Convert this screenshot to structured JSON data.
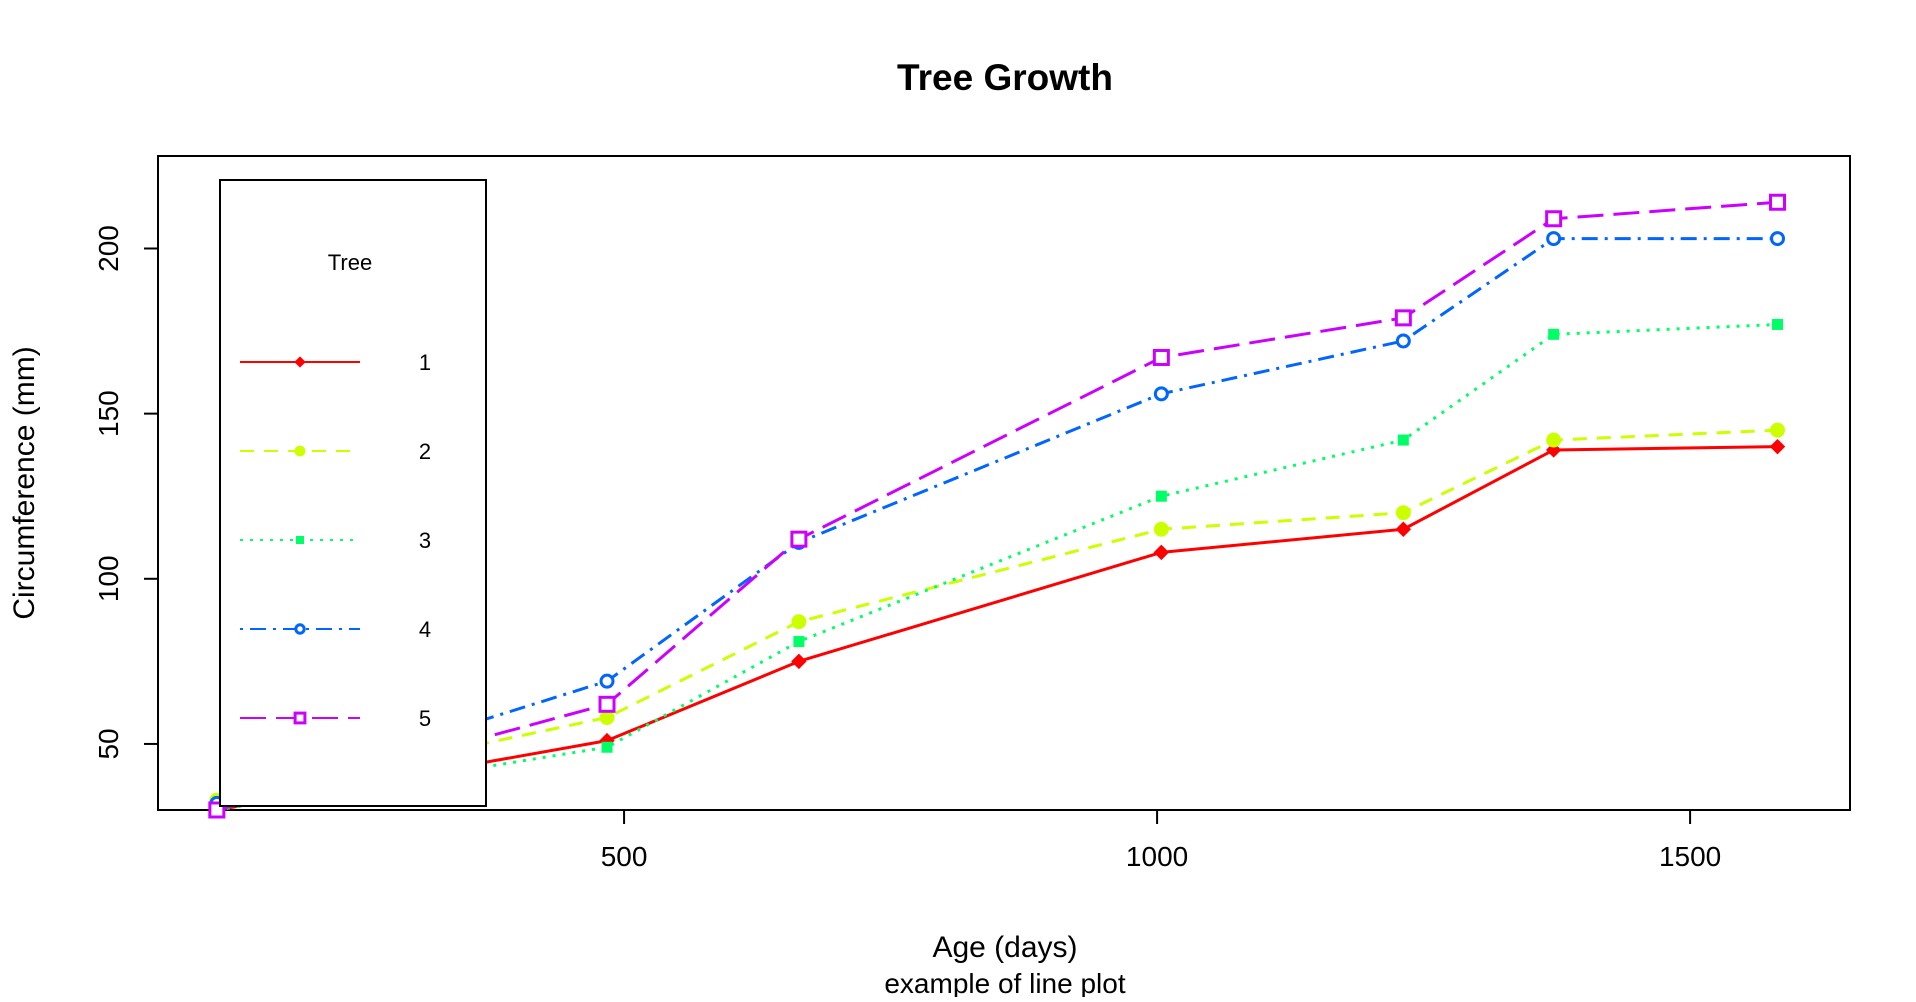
{
  "chart_data": {
    "type": "line",
    "title": "Tree Growth",
    "xlabel": "Age (days)",
    "subtitle": "example of line plot",
    "ylabel": "Circumference (mm)",
    "x": [
      118,
      484,
      664,
      1004,
      1231,
      1372,
      1582
    ],
    "xlim": [
      62.8,
      1650
    ],
    "ylim": [
      30,
      228
    ],
    "x_ticks": [
      500,
      1000,
      1500
    ],
    "y_ticks": [
      50,
      100,
      150,
      200
    ],
    "grid": false,
    "legend": {
      "title": "Tree",
      "position": "top-left"
    },
    "series": [
      {
        "name": "1",
        "color": "#ff0000",
        "dash": "solid",
        "marker": "diamond",
        "values": [
          30,
          51,
          75,
          108,
          115,
          139,
          140
        ]
      },
      {
        "name": "2",
        "color": "#ccff00",
        "dash": "dashed",
        "marker": "dot",
        "values": [
          33,
          58,
          87,
          115,
          120,
          142,
          145
        ]
      },
      {
        "name": "3",
        "color": "#00ff66",
        "dash": "dotted",
        "marker": "square-filled",
        "values": [
          30,
          49,
          81,
          125,
          142,
          174,
          177
        ]
      },
      {
        "name": "4",
        "color": "#0066ff",
        "dash": "dotdash",
        "marker": "circle-open",
        "values": [
          32,
          69,
          111,
          156,
          172,
          203,
          203
        ]
      },
      {
        "name": "5",
        "color": "#cc00ff",
        "dash": "longdash",
        "marker": "square-open",
        "values": [
          30,
          62,
          112,
          167,
          179,
          209,
          214
        ]
      }
    ]
  }
}
